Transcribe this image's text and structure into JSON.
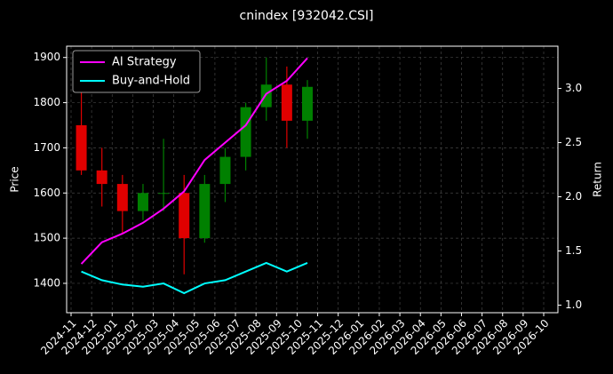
{
  "chart_data": {
    "type": "candlestick",
    "title": "cnindex [932042.CSI]",
    "ylabel": "Price",
    "y2label": "Return",
    "x": [
      "2024-11",
      "2024-12",
      "2025-01",
      "2025-02",
      "2025-03",
      "2025-04",
      "2025-05",
      "2025-06",
      "2025-07",
      "2025-08",
      "2025-09",
      "2025-10"
    ],
    "open": [
      1750,
      1650,
      1620,
      1560,
      1600,
      1600,
      1500,
      1620,
      1680,
      1790,
      1840,
      1760
    ],
    "high": [
      1840,
      1700,
      1640,
      1620,
      1720,
      1640,
      1640,
      1700,
      1800,
      1900,
      1880,
      1850
    ],
    "low": [
      1640,
      1570,
      1510,
      1540,
      1560,
      1420,
      1490,
      1580,
      1650,
      1760,
      1700,
      1720
    ],
    "close": [
      1650,
      1620,
      1560,
      1600,
      1600,
      1500,
      1620,
      1680,
      1790,
      1840,
      1760,
      1835
    ],
    "up_color": "#008000",
    "down_color": "#e00000",
    "series": [
      {
        "name": "AI Strategy",
        "type": "line",
        "axis": "y2",
        "color": "#ff00ff",
        "values": [
          1.38,
          1.58,
          1.66,
          1.76,
          1.89,
          2.05,
          2.34,
          2.5,
          2.66,
          2.95,
          3.07,
          3.28
        ]
      },
      {
        "name": "Buy-and-Hold",
        "type": "line",
        "axis": "y2",
        "color": "#00ffff",
        "values": [
          1.31,
          1.23,
          1.19,
          1.17,
          1.2,
          1.11,
          1.2,
          1.23,
          1.31,
          1.39,
          1.31,
          1.39
        ]
      }
    ],
    "ylim": [
      1335,
      1925
    ],
    "yticks": [
      1400,
      1500,
      1600,
      1700,
      1800,
      1900
    ],
    "y2lim": [
      0.93,
      3.39
    ],
    "y2ticks": [
      {
        "value": 1,
        "label": "1.0"
      },
      1.5,
      {
        "value": 2,
        "label": "2.0"
      },
      2.5,
      {
        "value": 3,
        "label": "3.0"
      }
    ],
    "xticks": [
      "2024-11",
      "2024-12",
      "2025-01",
      "2025-02",
      "2025-03",
      "2025-04",
      "2025-05",
      "2025-06",
      "2025-07",
      "2025-08",
      "2025-09",
      "2025-10",
      "2025-11",
      "2025-12",
      "2026-01",
      "2026-02",
      "2026-03",
      "2026-04",
      "2026-05",
      "2026-06",
      "2026-07",
      "2026-08",
      "2026-09",
      "2026-10"
    ],
    "grid": true,
    "legend": "upper left"
  }
}
